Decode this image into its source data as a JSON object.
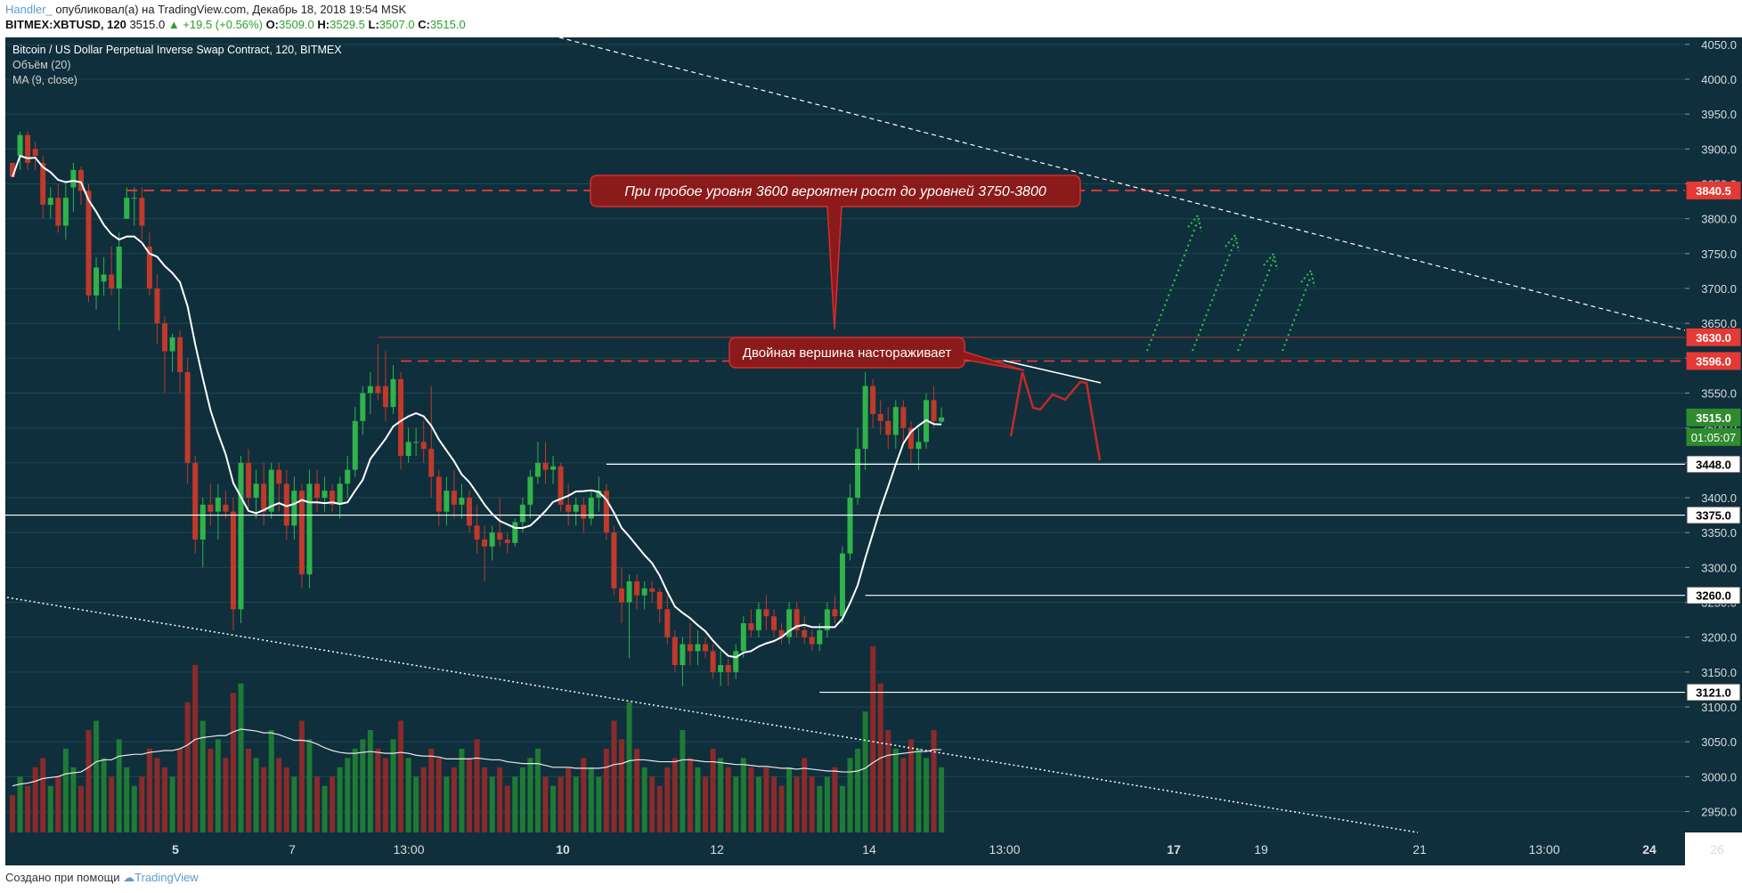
{
  "header": {
    "author": "Handler_",
    "published": "опубликовал(а) на TradingView.com, Декабрь 18, 2018 19:54 MSK",
    "symbol": "BITMEX:XBTUSD, 120",
    "last": "3515.0",
    "change": "▲ +19.5 (+0.56%)",
    "o_label": "O:",
    "o": "3509.0",
    "h_label": "H:",
    "h": "3529.5",
    "l_label": "L:",
    "l": "3507.0",
    "c_label": "C:",
    "c": "3515.0"
  },
  "footer": {
    "text": "Создано при помощи",
    "brand": "TradingView"
  },
  "colors": {
    "background": "#0f2f3c",
    "up": "#2fb34a",
    "down": "#c0392b",
    "volume_up": "#1f7a35",
    "volume_down": "#8a2a2a",
    "red_level": "#e53935",
    "white_level": "#ffffff",
    "annotation_fill": "#8b1a1a"
  },
  "chart_data": {
    "type": "candlestick",
    "title": "Bitcoin / US Dollar Perpetual Inverse Swap Contract, 120, BITMEX",
    "indicators": [
      "Объём (20)",
      "MA (9, close)"
    ],
    "ylim": [
      2920,
      4060
    ],
    "y_ticks": [
      "4050.0",
      "4000.0",
      "3950.0",
      "3900.0",
      "3850.0",
      "3800.0",
      "3750.0",
      "3700.0",
      "3650.0",
      "3600.0",
      "3550.0",
      "3500.0",
      "3450.0",
      "3400.0",
      "3350.0",
      "3300.0",
      "3250.0",
      "3200.0",
      "3150.0",
      "3100.0",
      "3050.0",
      "3000.0",
      "2950.0"
    ],
    "x_ticks": [
      "5",
      "7",
      "13:00",
      "10",
      "12",
      "14",
      "13:00",
      "17",
      "19",
      "21",
      "13:00",
      "24",
      "26"
    ],
    "x_tick_bold": [
      "5",
      "10",
      "17",
      "24"
    ],
    "price_markers": [
      {
        "label": "3840.5",
        "value": 3840.5,
        "kind": "red"
      },
      {
        "label": "3630.0",
        "value": 3630.0,
        "kind": "red"
      },
      {
        "label": "3596.0",
        "value": 3596.0,
        "kind": "red"
      },
      {
        "label": "3515.0",
        "value": 3515.0,
        "kind": "last"
      },
      {
        "label": "01:05:07",
        "value": 3487,
        "kind": "timer"
      },
      {
        "label": "3448.0",
        "value": 3448.0,
        "kind": "white"
      },
      {
        "label": "3375.0",
        "value": 3375.0,
        "kind": "white"
      },
      {
        "label": "3260.0",
        "value": 3260.0,
        "kind": "white"
      },
      {
        "label": "3121.0",
        "value": 3121.0,
        "kind": "white"
      }
    ],
    "levels": [
      {
        "value": 3840.5,
        "style": "red-dashed",
        "from_bar": 15
      },
      {
        "value": 3630.0,
        "style": "red-thin",
        "from_bar": 48
      },
      {
        "value": 3596.0,
        "style": "red-dashed",
        "from_bar": 51
      },
      {
        "value": 3448.0,
        "style": "white",
        "from_bar": 78
      },
      {
        "value": 3375.0,
        "style": "white",
        "from_bar": 0
      },
      {
        "value": 3260.0,
        "style": "white",
        "from_bar": 112
      },
      {
        "value": 3121.0,
        "style": "white",
        "from_bar": 106
      }
    ],
    "annotations": [
      {
        "text": "При пробое уровня 3600 вероятен рост до уровней 3750-3800",
        "italic": true
      },
      {
        "text": "Двойная вершина настораживает",
        "italic": false
      }
    ],
    "candles": [
      [
        3880,
        3880,
        3860,
        3860
      ],
      [
        3890,
        3925,
        3870,
        3920
      ],
      [
        3920,
        3925,
        3870,
        3880
      ],
      [
        3900,
        3910,
        3870,
        3890
      ],
      [
        3880,
        3890,
        3800,
        3820
      ],
      [
        3820,
        3845,
        3800,
        3830
      ],
      [
        3830,
        3850,
        3780,
        3790
      ],
      [
        3790,
        3850,
        3770,
        3830
      ],
      [
        3845,
        3880,
        3810,
        3870
      ],
      [
        3870,
        3875,
        3820,
        3840
      ],
      [
        3840,
        3850,
        3680,
        3690
      ],
      [
        3690,
        3745,
        3670,
        3730
      ],
      [
        3710,
        3745,
        3690,
        3720
      ],
      [
        3720,
        3760,
        3690,
        3700
      ],
      [
        3700,
        3780,
        3640,
        3760
      ],
      [
        3800,
        3845,
        3800,
        3830
      ],
      [
        3830,
        3845,
        3790,
        3830
      ],
      [
        3830,
        3845,
        3770,
        3790
      ],
      [
        3760,
        3780,
        3690,
        3700
      ],
      [
        3700,
        3720,
        3620,
        3650
      ],
      [
        3650,
        3660,
        3550,
        3610
      ],
      [
        3610,
        3635,
        3580,
        3630
      ],
      [
        3630,
        3640,
        3550,
        3580
      ],
      [
        3580,
        3600,
        3420,
        3450
      ],
      [
        3450,
        3460,
        3320,
        3340
      ],
      [
        3340,
        3400,
        3300,
        3390
      ],
      [
        3390,
        3420,
        3360,
        3380
      ],
      [
        3380,
        3420,
        3340,
        3400
      ],
      [
        3390,
        3410,
        3370,
        3380
      ],
      [
        3380,
        3400,
        3210,
        3240
      ],
      [
        3240,
        3460,
        3220,
        3450
      ],
      [
        3450,
        3470,
        3380,
        3400
      ],
      [
        3400,
        3440,
        3370,
        3420
      ],
      [
        3420,
        3450,
        3360,
        3380
      ],
      [
        3380,
        3450,
        3370,
        3440
      ],
      [
        3440,
        3450,
        3380,
        3420
      ],
      [
        3420,
        3440,
        3340,
        3360
      ],
      [
        3360,
        3430,
        3340,
        3410
      ],
      [
        3410,
        3420,
        3270,
        3290
      ],
      [
        3290,
        3440,
        3270,
        3420
      ],
      [
        3420,
        3440,
        3380,
        3400
      ],
      [
        3400,
        3430,
        3380,
        3410
      ],
      [
        3410,
        3420,
        3380,
        3390
      ],
      [
        3390,
        3430,
        3370,
        3420
      ],
      [
        3420,
        3460,
        3400,
        3440
      ],
      [
        3440,
        3530,
        3430,
        3510
      ],
      [
        3510,
        3560,
        3490,
        3550
      ],
      [
        3550,
        3580,
        3520,
        3560
      ],
      [
        3560,
        3620,
        3540,
        3550
      ],
      [
        3560,
        3610,
        3510,
        3530
      ],
      [
        3530,
        3590,
        3520,
        3570
      ],
      [
        3570,
        3580,
        3440,
        3460
      ],
      [
        3460,
        3500,
        3450,
        3480
      ],
      [
        3480,
        3500,
        3460,
        3480
      ],
      [
        3480,
        3510,
        3450,
        3470
      ],
      [
        3470,
        3560,
        3400,
        3430
      ],
      [
        3430,
        3440,
        3360,
        3380
      ],
      [
        3380,
        3430,
        3360,
        3410
      ],
      [
        3410,
        3440,
        3370,
        3390
      ],
      [
        3390,
        3420,
        3370,
        3400
      ],
      [
        3400,
        3410,
        3350,
        3360
      ],
      [
        3360,
        3390,
        3320,
        3340
      ],
      [
        3340,
        3360,
        3280,
        3330
      ],
      [
        3330,
        3360,
        3310,
        3350
      ],
      [
        3350,
        3400,
        3330,
        3340
      ],
      [
        3340,
        3350,
        3320,
        3335
      ],
      [
        3335,
        3370,
        3330,
        3365
      ],
      [
        3365,
        3400,
        3350,
        3390
      ],
      [
        3390,
        3440,
        3370,
        3430
      ],
      [
        3430,
        3480,
        3420,
        3450
      ],
      [
        3450,
        3480,
        3420,
        3440
      ],
      [
        3440,
        3460,
        3420,
        3445
      ],
      [
        3445,
        3450,
        3380,
        3390
      ],
      [
        3390,
        3420,
        3360,
        3380
      ],
      [
        3380,
        3400,
        3360,
        3390
      ],
      [
        3390,
        3400,
        3350,
        3370
      ],
      [
        3370,
        3410,
        3360,
        3400
      ],
      [
        3400,
        3430,
        3380,
        3410
      ],
      [
        3410,
        3420,
        3340,
        3350
      ],
      [
        3350,
        3360,
        3260,
        3270
      ],
      [
        3270,
        3300,
        3220,
        3250
      ],
      [
        3250,
        3290,
        3170,
        3280
      ],
      [
        3280,
        3290,
        3240,
        3260
      ],
      [
        3260,
        3280,
        3240,
        3270
      ],
      [
        3270,
        3280,
        3250,
        3265
      ],
      [
        3265,
        3270,
        3220,
        3240
      ],
      [
        3240,
        3260,
        3190,
        3200
      ],
      [
        3200,
        3210,
        3150,
        3160
      ],
      [
        3160,
        3200,
        3130,
        3190
      ],
      [
        3190,
        3220,
        3160,
        3180
      ],
      [
        3180,
        3210,
        3160,
        3190
      ],
      [
        3190,
        3200,
        3170,
        3180
      ],
      [
        3180,
        3190,
        3140,
        3150
      ],
      [
        3150,
        3180,
        3130,
        3160
      ],
      [
        3160,
        3170,
        3130,
        3150
      ],
      [
        3150,
        3190,
        3140,
        3180
      ],
      [
        3180,
        3230,
        3170,
        3220
      ],
      [
        3220,
        3240,
        3200,
        3210
      ],
      [
        3210,
        3250,
        3200,
        3240
      ],
      [
        3240,
        3260,
        3210,
        3230
      ],
      [
        3230,
        3240,
        3200,
        3210
      ],
      [
        3210,
        3220,
        3190,
        3200
      ],
      [
        3200,
        3250,
        3190,
        3240
      ],
      [
        3240,
        3250,
        3200,
        3210
      ],
      [
        3210,
        3230,
        3190,
        3200
      ],
      [
        3200,
        3210,
        3180,
        3190
      ],
      [
        3190,
        3220,
        3180,
        3210
      ],
      [
        3210,
        3250,
        3200,
        3240
      ],
      [
        3240,
        3260,
        3220,
        3230
      ],
      [
        3230,
        3330,
        3220,
        3320
      ],
      [
        3320,
        3420,
        3310,
        3400
      ],
      [
        3400,
        3500,
        3390,
        3470
      ],
      [
        3470,
        3580,
        3440,
        3560
      ],
      [
        3560,
        3570,
        3500,
        3520
      ],
      [
        3520,
        3540,
        3490,
        3510
      ],
      [
        3510,
        3530,
        3470,
        3490
      ],
      [
        3490,
        3540,
        3470,
        3530
      ],
      [
        3530,
        3540,
        3480,
        3500
      ],
      [
        3500,
        3510,
        3450,
        3470
      ],
      [
        3470,
        3500,
        3440,
        3480
      ],
      [
        3480,
        3550,
        3470,
        3540
      ],
      [
        3540,
        3560,
        3500,
        3510
      ],
      [
        3509,
        3529.5,
        3507,
        3515
      ]
    ],
    "volumes": [
      4,
      6,
      5,
      7,
      8,
      5,
      6,
      9,
      7,
      5,
      11,
      12,
      8,
      6,
      10,
      7,
      5,
      6,
      9,
      8,
      7,
      6,
      9,
      14,
      18,
      12,
      9,
      10,
      8,
      15,
      16,
      9,
      8,
      7,
      11,
      8,
      7,
      6,
      12,
      10,
      6,
      5,
      6,
      7,
      8,
      9,
      10,
      11,
      9,
      8,
      10,
      12,
      8,
      6,
      7,
      9,
      8,
      6,
      7,
      9,
      8,
      10,
      7,
      6,
      7,
      5,
      6,
      7,
      8,
      9,
      6,
      5,
      6,
      7,
      6,
      8,
      7,
      6,
      9,
      12,
      10,
      14,
      9,
      7,
      6,
      5,
      7,
      8,
      11,
      8,
      7,
      6,
      9,
      8,
      7,
      6,
      8,
      7,
      6,
      7,
      6,
      5,
      7,
      6,
      8,
      6,
      5,
      6,
      7,
      5,
      8,
      9,
      13,
      20,
      16,
      11,
      9,
      8,
      10,
      9,
      8,
      11,
      7
    ],
    "volume_ma": [
      5,
      5.2,
      5.3,
      5.5,
      5.8,
      5.9,
      6,
      6.3,
      6.4,
      6.5,
      7,
      7.6,
      7.8,
      7.8,
      8.2,
      8.3,
      8.4,
      8.4,
      8.6,
      8.7,
      8.8,
      8.8,
      9,
      9.4,
      10,
      10.2,
      10.3,
      10.4,
      10.4,
      10.8,
      11.1,
      11,
      10.9,
      10.7,
      10.7,
      10.5,
      10.2,
      9.9,
      9.9,
      9.8,
      9.5,
      9.1,
      8.8,
      8.6,
      8.5,
      8.5,
      8.6,
      8.7,
      8.6,
      8.5,
      8.5,
      8.6,
      8.5,
      8.3,
      8.2,
      8.2,
      8.1,
      7.9,
      7.9,
      7.9,
      7.9,
      8,
      7.9,
      7.8,
      7.8,
      7.6,
      7.5,
      7.4,
      7.4,
      7.4,
      7.2,
      7,
      7,
      7,
      6.9,
      6.9,
      6.9,
      6.9,
      7,
      7.3,
      7.4,
      7.7,
      7.8,
      7.8,
      7.7,
      7.6,
      7.6,
      7.6,
      7.8,
      7.8,
      7.7,
      7.6,
      7.6,
      7.5,
      7.4,
      7.3,
      7.3,
      7.2,
      7.1,
      7.1,
      7,
      6.9,
      6.9,
      6.8,
      6.9,
      6.8,
      6.7,
      6.6,
      6.6,
      6.5,
      6.5,
      6.6,
      6.9,
      7.5,
      8,
      8.3,
      8.4,
      8.5,
      8.6,
      8.7,
      8.7,
      8.9,
      8.9
    ]
  }
}
